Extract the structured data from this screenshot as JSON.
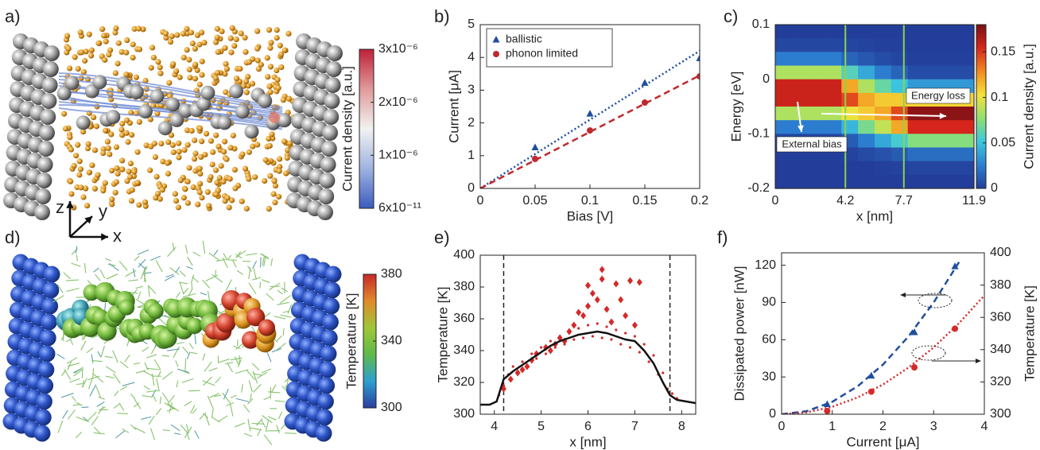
{
  "chart_data": [
    {
      "type": "colorbar",
      "panel": "a)",
      "axes_labels": [
        "z",
        "y",
        "x"
      ],
      "colorbar": {
        "label": "Current density [a.u.]",
        "lim": [
          6e-11,
          3e-06
        ],
        "ticks": [
          {
            "value": 6e-11,
            "label": "6x10⁻¹¹"
          },
          {
            "value": 1e-06,
            "label": "1x10⁻⁶"
          },
          {
            "value": 2e-06,
            "label": "2x10⁻⁶"
          },
          {
            "value": 3e-06,
            "label": "3x10⁻⁶"
          }
        ],
        "colormap": [
          "#3a5bbf",
          "#9fb3e0",
          "#f2f2f2",
          "#e09a9a",
          "#c0203a"
        ]
      }
    },
    {
      "type": "line",
      "panel": "b)",
      "xlabel": "Bias [V]",
      "ylabel": "Current [μA]",
      "xlim": [
        0,
        0.2
      ],
      "xticks": [
        0,
        0.05,
        0.1,
        0.15,
        0.2
      ],
      "ylim": [
        0,
        5
      ],
      "yticks": [
        0,
        1,
        2,
        3,
        4,
        5
      ],
      "legend": "upper left",
      "series": [
        {
          "name": "ballistic",
          "color": "#1f4e9e",
          "marker": "triangle",
          "x": [
            0.05,
            0.1,
            0.15,
            0.2
          ],
          "values": [
            1.25,
            2.28,
            3.22,
            3.97
          ]
        },
        {
          "name": "phonon limited",
          "color": "#c0282d",
          "marker": "circle",
          "x": [
            0.05,
            0.1,
            0.15,
            0.2
          ],
          "values": [
            0.9,
            1.77,
            2.62,
            3.42
          ]
        },
        {
          "color": "#1f4e9e",
          "linestyle": "dotted",
          "x": [
            0,
            0.2
          ],
          "values": [
            0,
            4.2
          ]
        },
        {
          "color": "#c0282d",
          "linestyle": "dashed",
          "x": [
            0,
            0.2
          ],
          "values": [
            0,
            3.45
          ]
        }
      ]
    },
    {
      "type": "heatmap",
      "panel": "c)",
      "xlabel": "x [nm]",
      "ylabel": "Energy [eV]",
      "xlim": [
        0,
        11.9
      ],
      "xticks": [
        0,
        4.2,
        7.7,
        11.9
      ],
      "ylim": [
        -0.2,
        0.1
      ],
      "yticks": [
        -0.2,
        -0.1,
        0,
        0.1
      ],
      "vlines": [
        4.2,
        7.7
      ],
      "vline_color": "#8fd14f",
      "annotations": [
        "Energy loss",
        "External bias"
      ],
      "z": [
        [
          0,
          0,
          0,
          0,
          0,
          0,
          0,
          0,
          0,
          0,
          0,
          0
        ],
        [
          0.004,
          0.004,
          0.004,
          0.004,
          0.003,
          0.002,
          0.001,
          0.001,
          0,
          0,
          0,
          0
        ],
        [
          0.025,
          0.025,
          0.025,
          0.025,
          0.015,
          0.01,
          0.006,
          0.003,
          0.001,
          0.001,
          0.001,
          0.001
        ],
        [
          0.085,
          0.085,
          0.085,
          0.085,
          0.06,
          0.04,
          0.025,
          0.015,
          0.006,
          0.006,
          0.006,
          0.006
        ],
        [
          0.158,
          0.158,
          0.158,
          0.158,
          0.12,
          0.085,
          0.065,
          0.05,
          0.035,
          0.035,
          0.035,
          0.035
        ],
        [
          0.158,
          0.158,
          0.158,
          0.158,
          0.145,
          0.12,
          0.11,
          0.11,
          0.107,
          0.107,
          0.107,
          0.107
        ],
        [
          0.085,
          0.085,
          0.085,
          0.085,
          0.1,
          0.11,
          0.12,
          0.145,
          0.175,
          0.175,
          0.175,
          0.175
        ],
        [
          0.025,
          0.025,
          0.025,
          0.025,
          0.045,
          0.07,
          0.09,
          0.12,
          0.155,
          0.155,
          0.155,
          0.155
        ],
        [
          0.004,
          0.004,
          0.004,
          0.004,
          0.012,
          0.025,
          0.04,
          0.055,
          0.074,
          0.074,
          0.074,
          0.074
        ],
        [
          0,
          0,
          0,
          0,
          0.002,
          0.005,
          0.008,
          0.012,
          0.019,
          0.019,
          0.019,
          0.019
        ],
        [
          0,
          0,
          0,
          0,
          0,
          0,
          0.001,
          0.002,
          0.003,
          0.003,
          0.003,
          0.003
        ],
        [
          0,
          0,
          0,
          0,
          0,
          0,
          0,
          0,
          0,
          0,
          0,
          0
        ]
      ],
      "colorbar": {
        "label": "Current density [a.u.]",
        "lim": [
          0,
          0.18
        ],
        "ticks": [
          0,
          0.05,
          0.1,
          0.15
        ],
        "colormap": [
          "#233e9a",
          "#2c7fd0",
          "#3cc8e0",
          "#8fe070",
          "#f5e33a",
          "#f28a1e",
          "#d8261c",
          "#7a1014"
        ]
      }
    },
    {
      "type": "colorbar",
      "panel": "d)",
      "colorbar": {
        "label": "Temperature [K]",
        "lim": [
          300,
          380
        ],
        "ticks": [
          300,
          340,
          380
        ],
        "colormap": [
          "#2a3fa0",
          "#2f9fd0",
          "#5fba4a",
          "#9fc63a",
          "#e08a2a",
          "#c8282a"
        ]
      }
    },
    {
      "type": "scatter",
      "panel": "e)",
      "xlabel": "x [nm]",
      "ylabel": "Temperature [K]",
      "xlim": [
        3.7,
        8.3
      ],
      "xticks": [
        4,
        5,
        6,
        7,
        8
      ],
      "ylim": [
        300,
        400
      ],
      "yticks": [
        300,
        320,
        340,
        360,
        380,
        400
      ],
      "vlines": [
        4.2,
        7.75
      ],
      "vline_color": "#222",
      "series": [
        {
          "color": "#d42a2a",
          "marker": "dot",
          "x": [
            4.1,
            4.2,
            4.3,
            4.4,
            4.5,
            4.6,
            4.7,
            4.8,
            4.9,
            5.0,
            5.1,
            5.2,
            5.3,
            5.4,
            5.5,
            5.6,
            5.7,
            5.8,
            5.9,
            6.0,
            6.1,
            6.2,
            6.3,
            6.4,
            6.5,
            6.6,
            6.7,
            6.8,
            6.9,
            7.0,
            7.1,
            7.2,
            7.3,
            7.4,
            7.5,
            7.6,
            7.7,
            7.8,
            7.9
          ],
          "values": [
            312,
            318,
            325,
            330,
            327,
            333,
            331,
            338,
            335,
            342,
            338,
            346,
            342,
            349,
            344,
            351,
            347,
            354,
            348,
            356,
            349,
            357,
            348,
            355,
            347,
            353,
            344,
            351,
            342,
            349,
            339,
            344,
            333,
            337,
            325,
            326,
            316,
            313,
            310
          ]
        },
        {
          "color": "#d42a2a",
          "marker": "diamond",
          "x": [
            4.2,
            4.35,
            4.5,
            4.6,
            4.7,
            4.8,
            4.9,
            5.1,
            5.2,
            5.3,
            5.4,
            5.5,
            5.6,
            5.7,
            5.8,
            5.9,
            6.0,
            6.0,
            6.1,
            6.2,
            6.3,
            6.3,
            6.4,
            6.5,
            6.6,
            6.7,
            6.8,
            6.9,
            7.0,
            7.1
          ],
          "values": [
            316,
            322,
            326,
            328,
            330,
            334,
            338,
            342,
            340,
            344,
            348,
            346,
            352,
            356,
            364,
            362,
            381,
            368,
            376,
            372,
            385,
            391,
            366,
            358,
            382,
            372,
            362,
            384,
            356,
            383
          ]
        },
        {
          "color": "#111111",
          "linestyle": "solid",
          "x": [
            3.7,
            3.9,
            4.05,
            4.2,
            4.4,
            4.6,
            4.8,
            5.0,
            5.2,
            5.4,
            5.6,
            5.8,
            6.0,
            6.2,
            6.4,
            6.6,
            6.8,
            7.0,
            7.2,
            7.4,
            7.6,
            7.75,
            7.9,
            8.1,
            8.3
          ],
          "values": [
            306,
            306,
            308,
            322,
            327,
            331,
            335,
            339,
            343,
            346,
            348,
            350,
            351,
            352,
            351,
            349,
            347,
            346,
            340,
            332,
            320,
            312,
            309,
            308,
            307
          ]
        }
      ]
    },
    {
      "type": "line",
      "panel": "f)",
      "xlabel": "Current [μA]",
      "ylabel": "Dissipated power [nW]",
      "y2label": "Temperature [K]",
      "xlim": [
        0,
        4
      ],
      "xticks": [
        0,
        1,
        2,
        3,
        4
      ],
      "ylim": [
        0,
        130
      ],
      "yticks": [
        0,
        30,
        60,
        90,
        120
      ],
      "y2lim": [
        300,
        400
      ],
      "y2ticks": [
        300,
        320,
        340,
        360,
        380,
        400
      ],
      "series": [
        {
          "color": "#1f4e9e",
          "linestyle": "dashed",
          "x": [
            0,
            0.5,
            1,
            1.5,
            2,
            2.5,
            3,
            3.5
          ],
          "values": [
            0,
            2.5,
            10,
            22.5,
            40,
            62.5,
            90,
            122.5
          ]
        },
        {
          "color": "#d42a2a",
          "linestyle": "dotted",
          "axis": "y2",
          "x": [
            0,
            0.5,
            1,
            1.5,
            2,
            2.5,
            3,
            3.5,
            4
          ],
          "values": [
            300,
            301.2,
            304.6,
            310.4,
            318.4,
            328.8,
            341.4,
            356.4,
            373.6
          ]
        },
        {
          "color": "#1f4e9e",
          "marker": "triangle",
          "x": [
            0.9,
            1.77,
            2.62,
            3.42
          ],
          "values": [
            8,
            31,
            66,
            119
          ]
        },
        {
          "color": "#d42a2a",
          "marker": "circle",
          "axis": "y2",
          "x": [
            0.9,
            1.77,
            2.62,
            3.42
          ],
          "values": [
            302,
            314,
            329,
            353
          ]
        }
      ]
    }
  ]
}
